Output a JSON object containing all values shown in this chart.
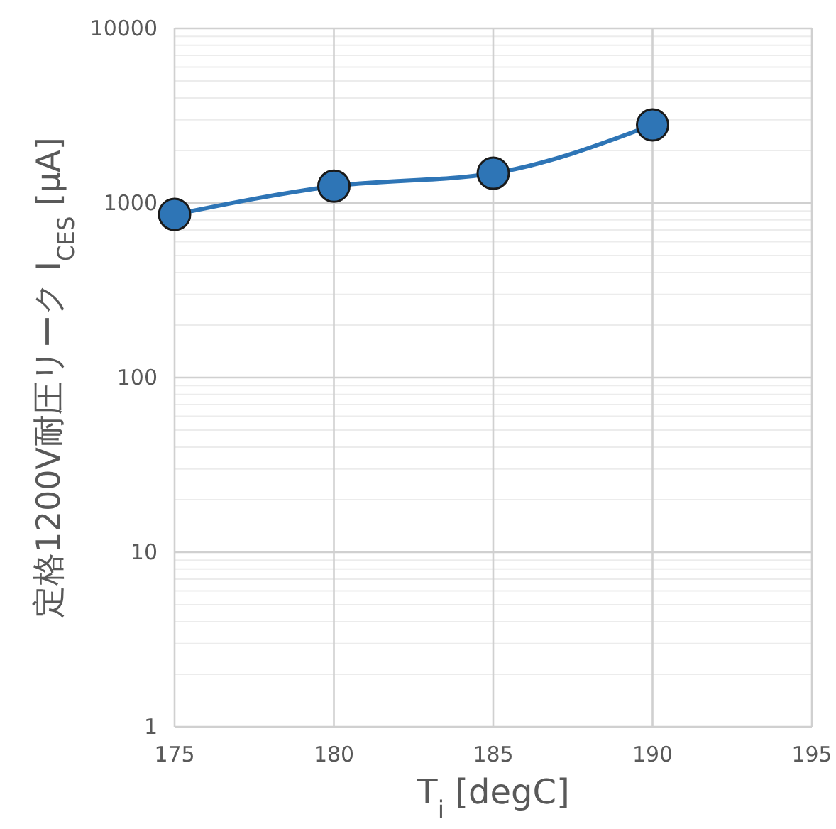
{
  "chart_data": {
    "type": "line",
    "xlabel": "T$_{i}$ [degC]",
    "ylabel": "定格1200V耐圧リーク I$_{CES}$ [μA]",
    "x": [
      175,
      180,
      185,
      190
    ],
    "series": [
      {
        "color": "#2e75b6",
        "values": [
          860,
          1250,
          1480,
          2800
        ]
      }
    ],
    "xlim": [
      175,
      195
    ],
    "xticks": [
      175,
      180,
      185,
      190,
      195
    ],
    "ylim": [
      1,
      10000
    ],
    "yticks": [
      1,
      10,
      100,
      1000,
      10000
    ],
    "log": "y",
    "grid": true,
    "marker": "circle",
    "line_style": "solid"
  }
}
